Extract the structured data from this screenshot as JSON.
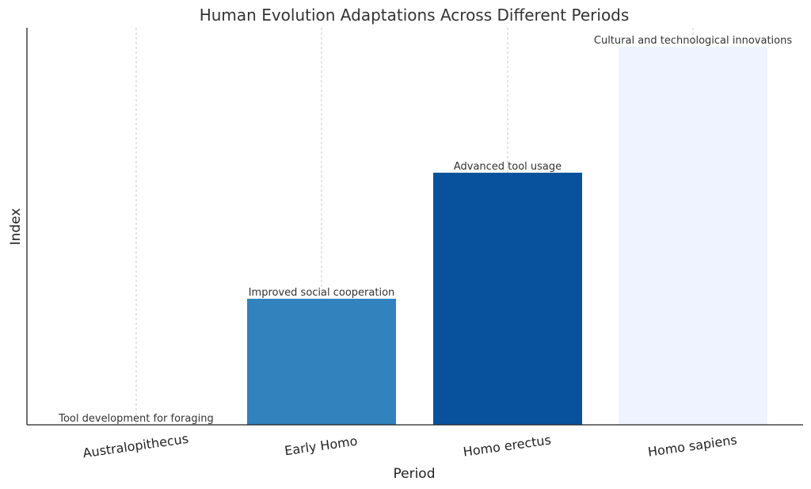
{
  "chart_data": {
    "type": "bar",
    "title": "Human Evolution Adaptations Across Different Periods",
    "xlabel": "Period",
    "ylabel": "Index",
    "categories": [
      "Australopithecus",
      "Early Homo",
      "Homo erectus",
      "Homo sapiens"
    ],
    "values": [
      0,
      1,
      2,
      3
    ],
    "annotations": [
      "Tool development for foraging",
      "Improved social cooperation",
      "Advanced tool usage",
      "Cultural and technological innovations"
    ],
    "colors": [
      "#f7fbff",
      "#3182bd",
      "#08519c",
      "#eff3ff"
    ],
    "ylim": [
      0,
      3.15
    ],
    "grid": "vertical",
    "legend": "none"
  }
}
